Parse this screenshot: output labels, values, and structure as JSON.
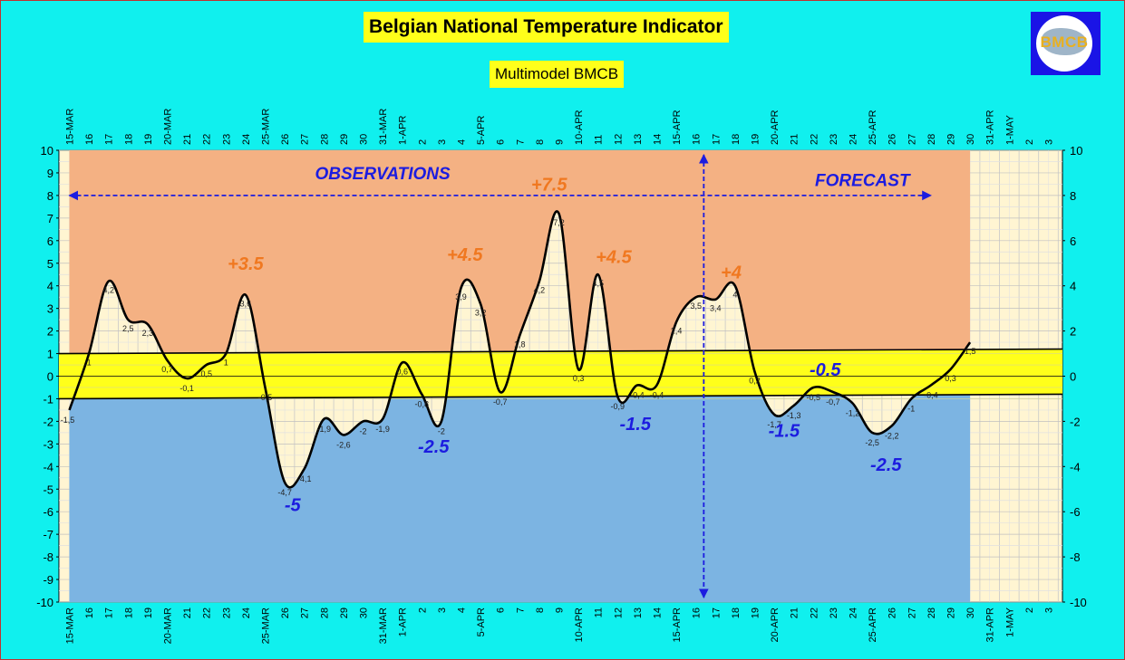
{
  "title": "Belgian National Temperature Indicator",
  "subtitle": "Multimodel BMCB",
  "logo_text": "BMCB",
  "colors": {
    "background": "#10f0ee",
    "plot": "#fff5d2",
    "band": "#ffff1a",
    "warm_fill": "#f4b183",
    "cold_fill": "#7cb4e2",
    "line": "#000000",
    "warm_label": "#f07820",
    "cold_label": "#1c1ce0"
  },
  "chart_data": {
    "type": "line",
    "x_tick_labels": [
      "15-MAR",
      "16",
      "17",
      "18",
      "19",
      "20-MAR",
      "21",
      "22",
      "23",
      "24",
      "25-MAR",
      "26",
      "27",
      "28",
      "29",
      "30",
      "31-MAR",
      "1-APR",
      "2",
      "3",
      "4",
      "5-APR",
      "6",
      "7",
      "8",
      "9",
      "10-APR",
      "11",
      "12",
      "13",
      "14",
      "15-APR",
      "16",
      "17",
      "18",
      "19",
      "20-APR",
      "21",
      "22",
      "23",
      "24",
      "25-APR",
      "26",
      "27",
      "28",
      "29",
      "30",
      "31-APR",
      "1-MAY",
      "2",
      "3"
    ],
    "y_left": {
      "min": -10,
      "max": 10,
      "step": 1
    },
    "y_right": {
      "min": -10,
      "max": 10,
      "step": 2
    },
    "grid": true,
    "series": [
      {
        "values": [
          -1.5,
          1,
          4.2,
          2.5,
          2.3,
          0.7,
          -0.1,
          0.5,
          1,
          3.6,
          -0.5,
          -4.7,
          -4.1,
          -1.9,
          -2.6,
          -2,
          -1.9,
          0.6,
          -0.8,
          -2,
          3.9,
          3.2,
          -0.7,
          1.8,
          4.2,
          7.2,
          0.3,
          4.5,
          -0.9,
          -0.4,
          -0.4,
          2.4,
          3.5,
          3.4,
          4,
          0.2,
          -1.7,
          -1.3,
          -0.5,
          -0.7,
          -1.2,
          -2.5,
          -2.2,
          -1,
          -0.4,
          0.3,
          1.5
        ],
        "value_labels": [
          "-1,5",
          "1",
          "4,2",
          "2,5",
          "2,3",
          "0,7",
          "-0,1",
          "0,5",
          "1",
          "3,6",
          "-0,5",
          "-4,7",
          "-4,1",
          "-1,9",
          "-2,6",
          "-2",
          "-1,9",
          "0,6",
          "-0,8",
          "-2",
          "3,9",
          "3,2",
          "-0,7",
          "1,8",
          "4,2",
          "7,2",
          "0,3",
          "4,5",
          "-0,9",
          "-0,4",
          "-0,4",
          "2,4",
          "3,5",
          "3,4",
          "4",
          "0,2",
          "-1,7",
          "-1,3",
          "-0,5",
          "-0,7",
          "-1,2",
          "-2,5",
          "-2,2",
          "-1",
          "-0,4",
          "0,3",
          "1,5"
        ]
      }
    ],
    "normal_band": {
      "upper": [
        1,
        1.2
      ],
      "lower": [
        -1,
        -0.8
      ]
    },
    "forecast_start_index": 32.4,
    "region_labels": [
      {
        "text": "OBSERVATIONS",
        "x": 16,
        "y": 9
      },
      {
        "text": "FORECAST",
        "x": 40.5,
        "y": 8.7
      }
    ],
    "annotations": [
      {
        "text": "+3.5",
        "x": 9,
        "y": 5,
        "kind": "warm"
      },
      {
        "text": "+4.5",
        "x": 20.2,
        "y": 5.4,
        "kind": "warm"
      },
      {
        "text": "+7.5",
        "x": 24.5,
        "y": 8.5,
        "kind": "warm"
      },
      {
        "text": "+4.5",
        "x": 27.8,
        "y": 5.3,
        "kind": "warm"
      },
      {
        "text": "+4",
        "x": 33.8,
        "y": 4.6,
        "kind": "warm"
      },
      {
        "text": "-5",
        "x": 11.4,
        "y": -5.7,
        "kind": "cold"
      },
      {
        "text": "-2.5",
        "x": 18.6,
        "y": -3.1,
        "kind": "cold"
      },
      {
        "text": "-1.5",
        "x": 28.9,
        "y": -2.1,
        "kind": "cold"
      },
      {
        "text": "-1.5",
        "x": 36.5,
        "y": -2.4,
        "kind": "cold"
      },
      {
        "text": "-0.5",
        "x": 38.6,
        "y": 0.3,
        "kind": "cold"
      },
      {
        "text": "-2.5",
        "x": 41.7,
        "y": -3.9,
        "kind": "cold"
      }
    ]
  }
}
